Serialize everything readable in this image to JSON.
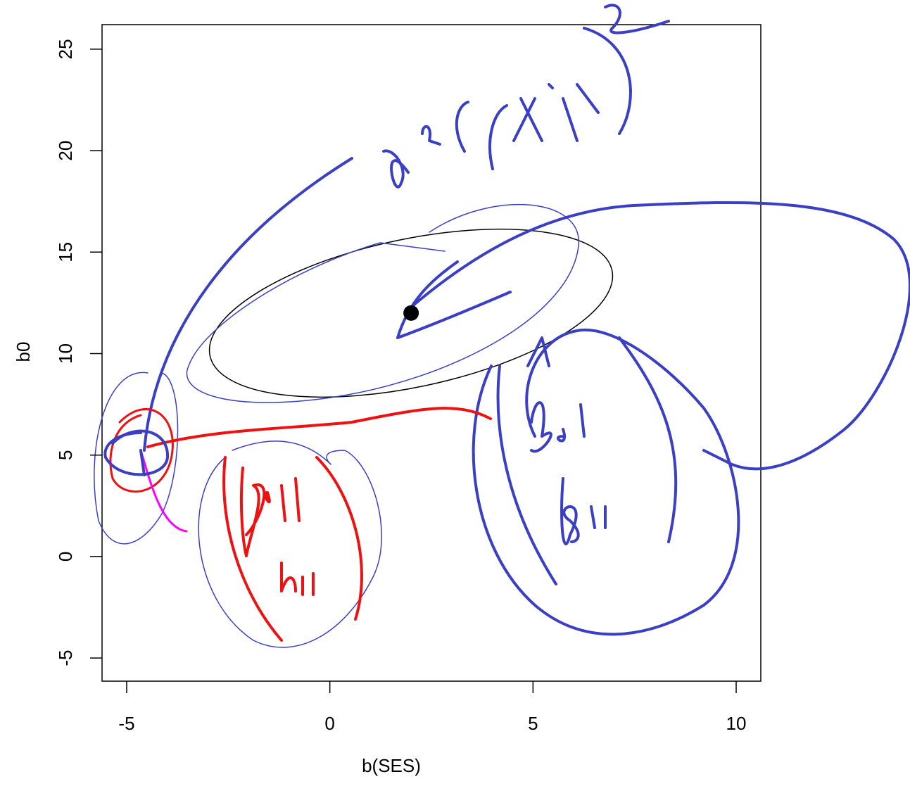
{
  "chart_data": {
    "type": "scatter",
    "x": [
      2
    ],
    "values": [
      12
    ],
    "color": "#000000",
    "xlabel": "b(SES)",
    "ylabel": "b0",
    "xlim": [
      -5.606,
      10.606
    ],
    "ylim": [
      -6.14,
      26.21
    ],
    "xticks": [
      -5,
      0,
      5,
      10
    ],
    "yticks": [
      -5,
      0,
      5,
      10,
      15,
      20,
      25
    ]
  }
}
